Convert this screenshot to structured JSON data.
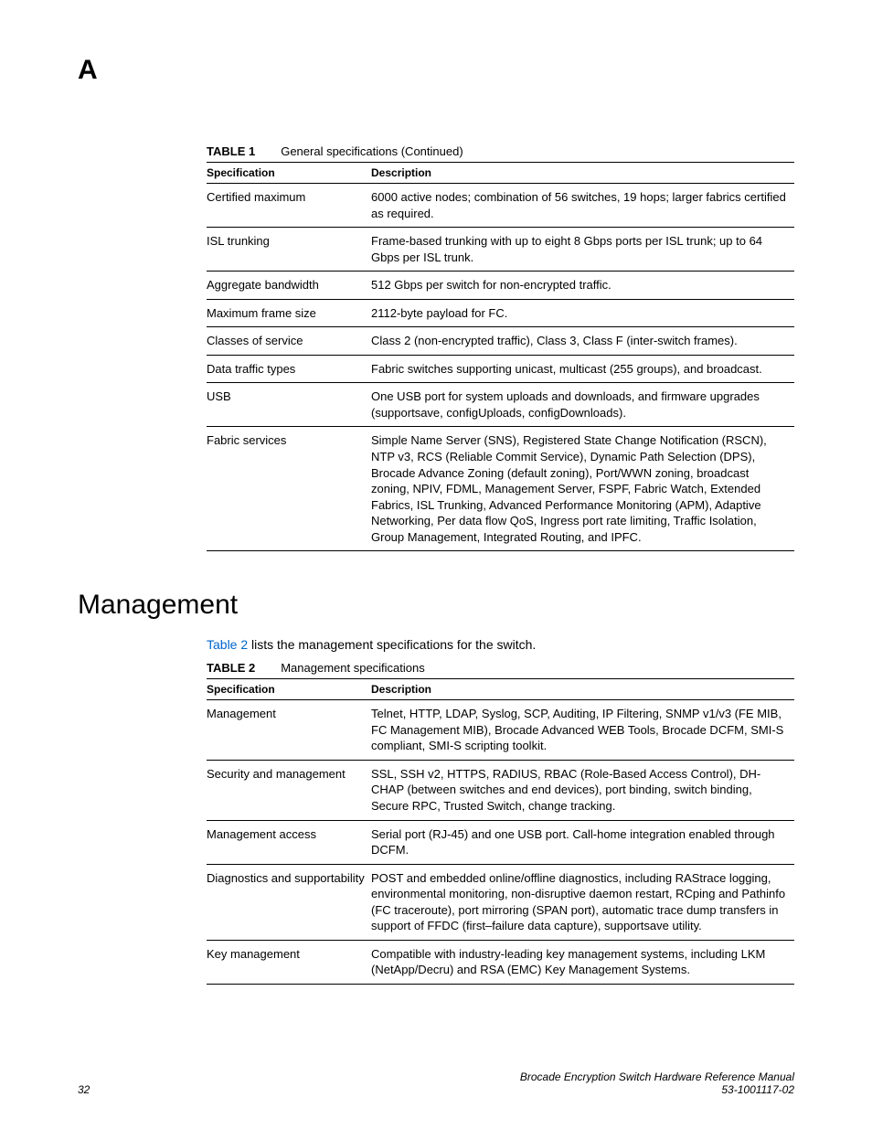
{
  "appendix_letter": "A",
  "table1": {
    "label": "TABLE 1",
    "title": "General specifications  (Continued)",
    "col_spec": "Specification",
    "col_desc": "Description",
    "rows": [
      {
        "spec": "Certified maximum",
        "desc": "6000 active nodes; combination of 56 switches, 19 hops; larger fabrics certified as required."
      },
      {
        "spec": "ISL trunking",
        "desc": "Frame-based trunking with up to eight 8 Gbps ports per ISL trunk; up to 64 Gbps per ISL trunk."
      },
      {
        "spec": "Aggregate bandwidth",
        "desc": "512 Gbps per switch for non-encrypted traffic."
      },
      {
        "spec": "Maximum frame size",
        "desc": "2112-byte payload for FC."
      },
      {
        "spec": "Classes of service",
        "desc": "Class 2 (non-encrypted traffic), Class 3, Class F (inter-switch frames)."
      },
      {
        "spec": "Data traffic types",
        "desc": "Fabric switches supporting unicast, multicast (255 groups), and broadcast."
      },
      {
        "spec": "USB",
        "desc": "One USB port for system uploads and downloads, and firmware upgrades (supportsave, configUploads, configDownloads)."
      },
      {
        "spec": "Fabric services",
        "desc": "Simple Name Server (SNS), Registered State Change Notification (RSCN), NTP v3, RCS (Reliable Commit Service), Dynamic Path Selection (DPS), Brocade Advance Zoning (default zoning), Port/WWN zoning, broadcast zoning, NPIV, FDML, Management Server, FSPF, Fabric Watch, Extended Fabrics, ISL Trunking, Advanced Performance Monitoring (APM), Adaptive Networking, Per data flow QoS, Ingress port rate limiting, Traffic Isolation, Group Management, Integrated Routing, and IPFC."
      }
    ]
  },
  "section_heading": "Management",
  "section_intro_link": "Table 2",
  "section_intro_rest": " lists the management specifications for the switch.",
  "table2": {
    "label": "TABLE 2",
    "title": "Management specifications",
    "col_spec": "Specification",
    "col_desc": "Description",
    "rows": [
      {
        "spec": "Management",
        "desc": "Telnet, HTTP, LDAP, Syslog, SCP, Auditing, IP Filtering, SNMP v1/v3 (FE MIB, FC Management MIB), Brocade Advanced WEB Tools, Brocade DCFM, SMI-S compliant, SMI-S scripting toolkit."
      },
      {
        "spec": "Security and management",
        "desc": "SSL, SSH v2, HTTPS, RADIUS, RBAC (Role-Based Access Control), DH-CHAP (between switches and end devices), port binding, switch binding, Secure RPC, Trusted Switch, change tracking."
      },
      {
        "spec": "Management access",
        "desc": "Serial port (RJ-45) and one USB port. Call-home integration enabled through DCFM."
      },
      {
        "spec": "Diagnostics and supportability",
        "desc": "POST and embedded online/offline diagnostics, including RAStrace logging, environmental monitoring, non-disruptive daemon restart, RCping and Pathinfo (FC traceroute), port mirroring (SPAN port), automatic trace dump transfers in support of FFDC (first–failure data capture), supportsave utility."
      },
      {
        "spec": "Key management",
        "desc": "Compatible with industry-leading key management systems, including LKM (NetApp/Decru) and RSA (EMC) Key Management Systems."
      }
    ]
  },
  "footer": {
    "page_number": "32",
    "manual_title": "Brocade Encryption Switch Hardware Reference Manual",
    "doc_number": "53-1001117-02"
  }
}
